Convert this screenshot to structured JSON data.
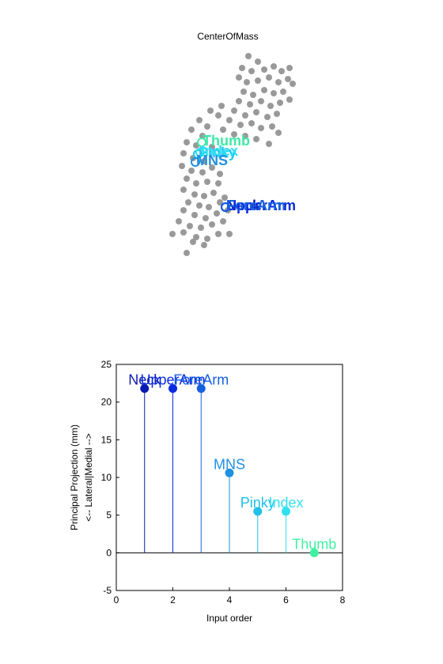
{
  "chart_data": [
    {
      "type": "scatter",
      "title": "CenterOfMass",
      "color": "#999999",
      "xlim": [
        200,
        380
      ],
      "ylim": [
        330,
        60
      ],
      "x": [
        314,
        326,
        306,
        318,
        334,
        346,
        356,
        366,
        302,
        312,
        326,
        340,
        352,
        364,
        370,
        308,
        320,
        334,
        346,
        358,
        302,
        316,
        330,
        342,
        354,
        366,
        296,
        310,
        324,
        338,
        350,
        290,
        304,
        318,
        330,
        344,
        352,
        282,
        296,
        310,
        324,
        340,
        276,
        266,
        280,
        252,
        262,
        242,
        256,
        236,
        248,
        268,
        232,
        244,
        258,
        230,
        242,
        256,
        268,
        236,
        248,
        262,
        232,
        246,
        258,
        270,
        238,
        252,
        264,
        278,
        232,
        246,
        260,
        274,
        288,
        226,
        240,
        254,
        268,
        282,
        218,
        232,
        248,
        262,
        276,
        290,
        244,
        258,
        236,
        284,
        276,
        278
      ],
      "y": [
        71,
        78,
        86,
        90,
        88,
        84,
        90,
        86,
        98,
        104,
        102,
        98,
        104,
        100,
        106,
        116,
        120,
        114,
        118,
        116,
        128,
        132,
        128,
        134,
        130,
        126,
        140,
        146,
        142,
        148,
        144,
        152,
        158,
        156,
        162,
        160,
        168,
        164,
        170,
        172,
        176,
        182,
        146,
        140,
        134,
        152,
        160,
        164,
        172,
        180,
        184,
        186,
        194,
        200,
        204,
        210,
        216,
        218,
        212,
        226,
        232,
        230,
        240,
        246,
        248,
        244,
        256,
        260,
        262,
        256,
        266,
        272,
        276,
        270,
        266,
        280,
        286,
        288,
        284,
        280,
        296,
        294,
        300,
        302,
        296,
        296,
        306,
        310,
        320,
        250,
        232,
        220
      ],
      "labels": [
        {
          "text": "Thumb",
          "x": 255,
          "y": 180,
          "color": "#40e8a8"
        },
        {
          "text": "Pinky",
          "x": 250,
          "y": 195,
          "color": "#20c8f0"
        },
        {
          "text": "Index",
          "x": 253,
          "y": 193,
          "color": "#30e0f0"
        },
        {
          "text": "MNS",
          "x": 247,
          "y": 205,
          "color": "#2090e0"
        },
        {
          "text": "Neck",
          "x": 285,
          "y": 262,
          "color": "#0a1ab0"
        },
        {
          "text": "UpperArm",
          "x": 285,
          "y": 262,
          "color": "#0a2ae0"
        },
        {
          "text": "ForeArm",
          "x": 285,
          "y": 262,
          "color": "#1560e0"
        }
      ]
    },
    {
      "type": "stem",
      "xlabel": "Input order",
      "ylabel": [
        "Principal Projection (mm)",
        "<-- Lateral|Medial -->"
      ],
      "x": [
        1,
        2,
        3,
        4,
        5,
        6,
        7
      ],
      "values": [
        21.8,
        21.8,
        21.8,
        10.6,
        5.5,
        5.5,
        0
      ],
      "labels": [
        "Neck",
        "UpperArm",
        "ForeArm",
        "MNS",
        "Pinky",
        "Index",
        "Thumb"
      ],
      "colors": [
        "#0a1ab0",
        "#0a2ae0",
        "#1560e0",
        "#2090e0",
        "#20c0e8",
        "#30e0f0",
        "#40f0a0"
      ],
      "xlim": [
        0,
        8
      ],
      "xticks": [
        0,
        2,
        4,
        6,
        8
      ],
      "ylim": [
        -5,
        25
      ],
      "yticks": [
        -5,
        0,
        5,
        10,
        15,
        20,
        25
      ]
    }
  ]
}
